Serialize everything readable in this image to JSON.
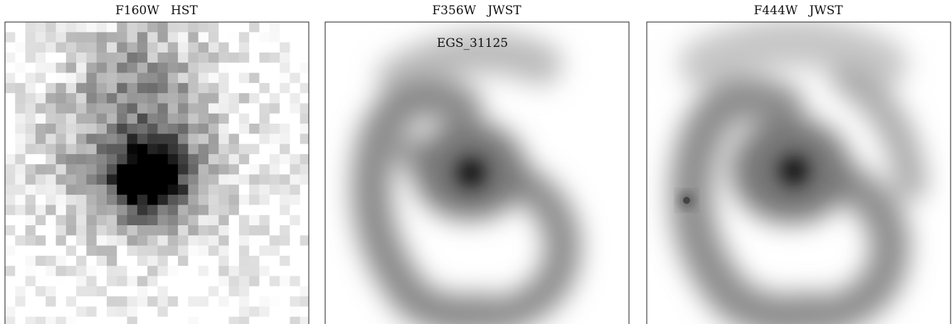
{
  "panels": [
    {
      "title": "F160W   HST"
    },
    {
      "title": "F356W   JWST",
      "label": "EGS_31125"
    },
    {
      "title": "F444W   JWST"
    }
  ]
}
